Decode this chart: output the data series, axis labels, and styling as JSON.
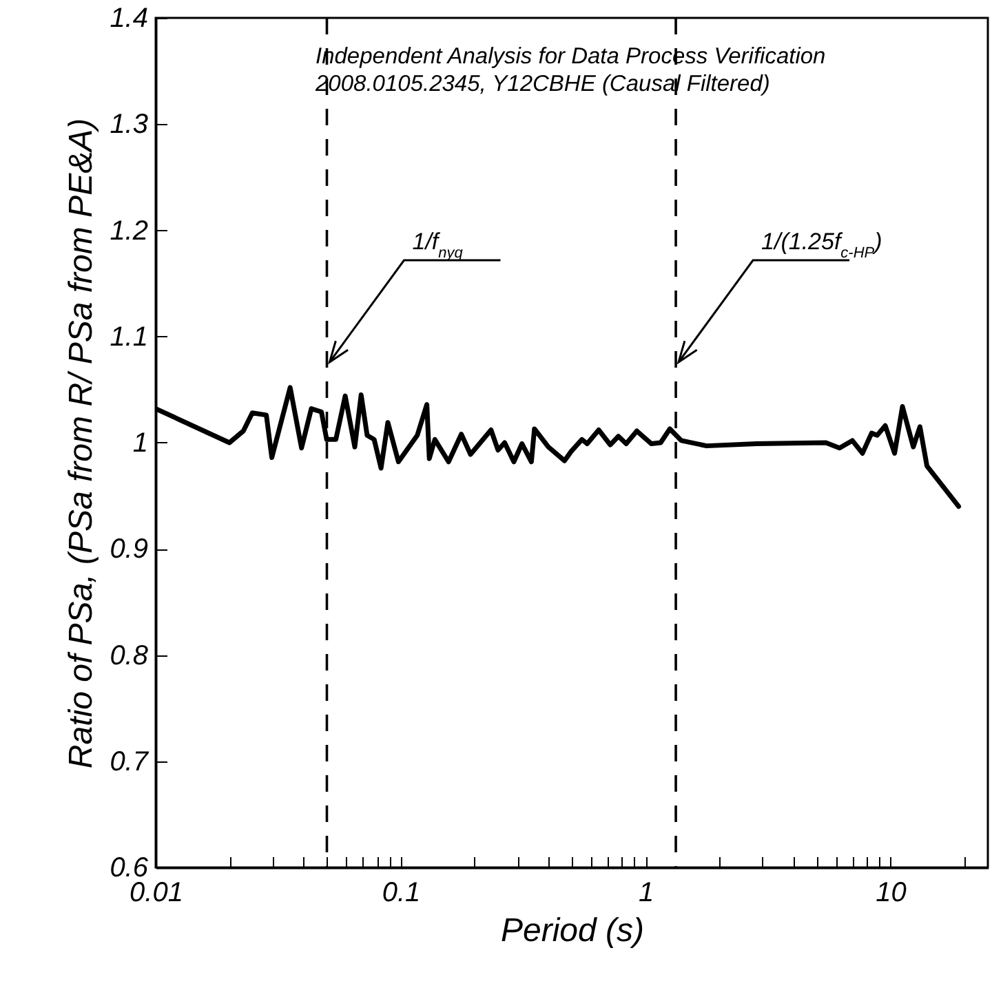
{
  "chart_data": {
    "type": "line",
    "title": "Independent Analysis for Data Process Verification",
    "subtitle": "2008.0105.2345, Y12CBHE (Causal Filtered)",
    "xlabel": "Period (s)",
    "ylabel": "Ratio of PSa, (PSa from R/ PSa from PE&A)",
    "log": "x",
    "grid": false,
    "xlim": [
      0.01,
      25
    ],
    "ylim": [
      0.6,
      1.4
    ],
    "xticks": [
      0.01,
      {
        "value": 0.02,
        "label": null
      },
      {
        "value": 0.03,
        "label": null
      },
      {
        "value": 0.04,
        "label": null
      },
      {
        "value": 0.05,
        "label": null
      },
      {
        "value": 0.06,
        "label": null
      },
      {
        "value": 0.07,
        "label": null
      },
      {
        "value": 0.08,
        "label": null
      },
      {
        "value": 0.09,
        "label": null
      },
      0.1,
      {
        "value": 0.2,
        "label": null
      },
      {
        "value": 0.3,
        "label": null
      },
      {
        "value": 0.4,
        "label": null
      },
      {
        "value": 0.5,
        "label": null
      },
      {
        "value": 0.6,
        "label": null
      },
      {
        "value": 0.7,
        "label": null
      },
      {
        "value": 0.8,
        "label": null
      },
      {
        "value": 0.9,
        "label": null
      },
      1,
      {
        "value": 2,
        "label": null
      },
      {
        "value": 3,
        "label": null
      },
      {
        "value": 4,
        "label": null
      },
      {
        "value": 5,
        "label": null
      },
      {
        "value": 6,
        "label": null
      },
      {
        "value": 7,
        "label": null
      },
      {
        "value": 8,
        "label": null
      },
      {
        "value": 9,
        "label": null
      },
      10,
      {
        "value": 20,
        "label": null
      }
    ],
    "yticks": [
      0.6,
      0.7,
      0.8,
      0.9,
      1,
      1.1,
      1.2,
      1.3,
      1.4
    ],
    "ref_lines": [
      {
        "axis": "x",
        "value": 0.05,
        "label": "1/f$_{nyq}$",
        "color": "#000000",
        "line_style": "dashed"
      },
      {
        "axis": "x",
        "value": 1.33,
        "label": "1/(1.25f$_{c-HP}$)",
        "color": "#000000",
        "line_style": "dashed"
      }
    ],
    "series": [
      {
        "color": "#000000",
        "line_style": "solid",
        "x": [
          0.01,
          0.02,
          0.0228,
          0.0248,
          0.0283,
          0.0298,
          0.0354,
          0.0394,
          0.0432,
          0.0475,
          0.0499,
          0.0544,
          0.0594,
          0.065,
          0.069,
          0.073,
          0.078,
          0.0832,
          0.0887,
          0.098,
          0.117,
          0.128,
          0.131,
          0.138,
          0.157,
          0.177,
          0.193,
          0.234,
          0.25,
          0.266,
          0.29,
          0.313,
          0.342,
          0.352,
          0.401,
          0.467,
          0.498,
          0.55,
          0.578,
          0.644,
          0.718,
          0.775,
          0.834,
          0.922,
          1.057,
          1.153,
          1.257,
          1.4,
          1.774,
          2.85,
          5.45,
          6.2,
          6.99,
          7.69,
          8.38,
          8.83,
          9.53,
          10.4,
          11.2,
          12.4,
          13.2,
          14.1,
          19
        ],
        "values": [
          1.032,
          1.0,
          1.011,
          1.028,
          1.026,
          0.986,
          1.052,
          0.995,
          1.032,
          1.029,
          1.003,
          1.003,
          1.044,
          0.996,
          1.045,
          1.007,
          1.003,
          0.976,
          1.019,
          0.982,
          1.007,
          1.036,
          0.985,
          1.003,
          0.982,
          1.008,
          0.989,
          1.012,
          0.993,
          1.0,
          0.982,
          0.999,
          0.982,
          1.013,
          0.996,
          0.983,
          0.992,
          1.003,
          0.999,
          1.012,
          0.998,
          1.006,
          0.999,
          1.011,
          0.999,
          1.0,
          1.013,
          1.002,
          0.997,
          0.999,
          1.0,
          0.995,
          1.002,
          0.99,
          1.009,
          1.007,
          1.016,
          0.99,
          1.034,
          0.996,
          1.015,
          0.978,
          0.94
        ]
      }
    ]
  }
}
